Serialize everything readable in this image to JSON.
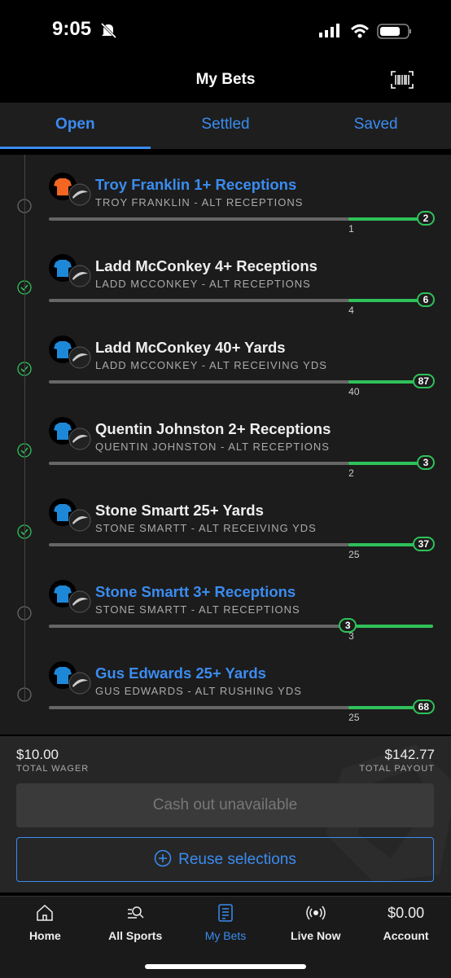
{
  "status_bar": {
    "time": "9:05"
  },
  "header": {
    "title": "My Bets"
  },
  "tabs": [
    {
      "label": "Open",
      "active": true
    },
    {
      "label": "Settled",
      "active": false
    },
    {
      "label": "Saved",
      "active": false
    }
  ],
  "legs": [
    {
      "title": "Troy Franklin 1+ Receptions",
      "subtitle": "TROY FRANKLIN - ALT RECEPTIONS",
      "target": 1,
      "current": 2,
      "settled": false,
      "jersey_color": "#f26522"
    },
    {
      "title": "Ladd McConkey 4+ Receptions",
      "subtitle": "LADD MCCONKEY - ALT RECEPTIONS",
      "target": 4,
      "current": 6,
      "settled": true,
      "jersey_color": "#1e88d8"
    },
    {
      "title": "Ladd McConkey 40+ Yards",
      "subtitle": "LADD MCCONKEY - ALT RECEIVING YDS",
      "target": 40,
      "current": 87,
      "settled": true,
      "jersey_color": "#1e88d8"
    },
    {
      "title": "Quentin Johnston 2+ Receptions",
      "subtitle": "QUENTIN JOHNSTON - ALT RECEPTIONS",
      "target": 2,
      "current": 3,
      "settled": true,
      "jersey_color": "#1e88d8"
    },
    {
      "title": "Stone Smartt 25+ Yards",
      "subtitle": "STONE SMARTT - ALT RECEIVING YDS",
      "target": 25,
      "current": 37,
      "settled": true,
      "jersey_color": "#1e88d8"
    },
    {
      "title": "Stone Smartt 3+ Receptions",
      "subtitle": "STONE SMARTT - ALT RECEPTIONS",
      "target": 3,
      "current": 3,
      "settled": false,
      "jersey_color": "#1e88d8"
    },
    {
      "title": "Gus Edwards 25+ Yards",
      "subtitle": "GUS EDWARDS - ALT RUSHING YDS",
      "target": 25,
      "current": 68,
      "settled": false,
      "jersey_color": "#1e88d8"
    }
  ],
  "summary": {
    "wager": "$10.00",
    "wager_label": "TOTAL WAGER",
    "payout": "$142.77",
    "payout_label": "TOTAL PAYOUT",
    "cash_out": "Cash out unavailable",
    "reuse": "Reuse selections"
  },
  "nav": [
    {
      "label": "Home",
      "active": false
    },
    {
      "label": "All Sports",
      "active": false
    },
    {
      "label": "My Bets",
      "active": true
    },
    {
      "label": "Live Now",
      "active": false
    },
    {
      "label": "Account",
      "value": "$0.00",
      "active": false
    }
  ]
}
